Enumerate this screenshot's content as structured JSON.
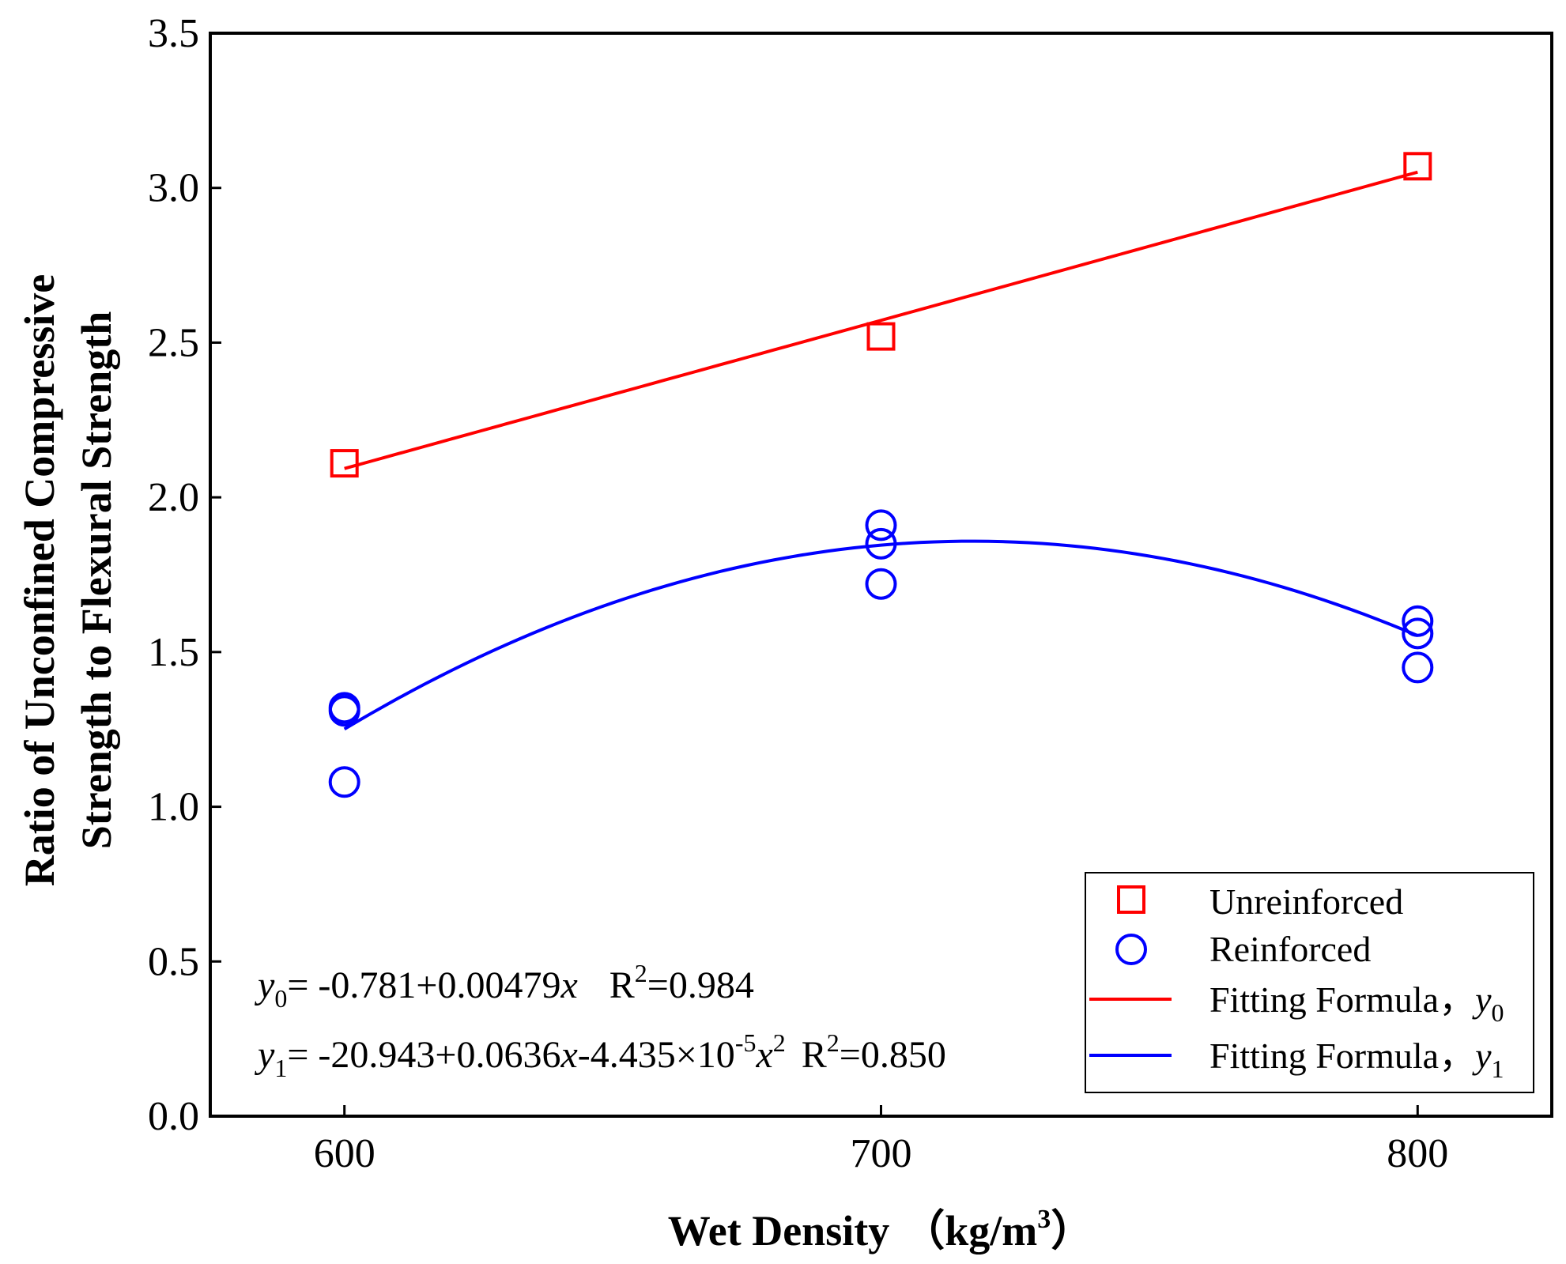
{
  "chart_data": {
    "type": "scatter",
    "xlabel": "Wet Density",
    "xunit": "（kg/m",
    "xunit_sup": "3",
    "xunit_close": "）",
    "ylabel_line1": "Ratio of Unconfined Compressive",
    "ylabel_line2": "Strength to Flexural Strength",
    "xlim": [
      575,
      825
    ],
    "ylim": [
      0.0,
      3.5
    ],
    "xticks": [
      600,
      700,
      800
    ],
    "xtick_labels": [
      "600",
      "700",
      "800"
    ],
    "yticks": [
      0.0,
      0.5,
      1.0,
      1.5,
      2.0,
      2.5,
      3.0,
      3.5
    ],
    "ytick_labels": [
      "0.0",
      "0.5",
      "1.0",
      "1.5",
      "2.0",
      "2.5",
      "3.0",
      "3.5"
    ],
    "grid": false,
    "legend_position": "bottom-right",
    "series": [
      {
        "name": "Unreinforced",
        "marker": "square",
        "color": "#ff0000",
        "x": [
          600,
          700,
          800
        ],
        "y": [
          2.11,
          2.52,
          3.07
        ]
      },
      {
        "name": "Reinforced",
        "marker": "circle",
        "color": "#0000ff",
        "x": [
          600,
          600,
          600,
          700,
          700,
          700,
          800,
          800,
          800
        ],
        "y": [
          1.32,
          1.31,
          1.08,
          1.91,
          1.85,
          1.72,
          1.6,
          1.56,
          1.45
        ]
      }
    ],
    "fits": [
      {
        "name": "Fitting Formula，",
        "var": "y",
        "sub": "0",
        "color": "#ff0000",
        "coefficients": [
          -0.781,
          0.00479
        ],
        "x_range": [
          600,
          800
        ],
        "label": "y0 = -0.781+0.00479x  R2=0.984"
      },
      {
        "name": "Fitting Formula，",
        "var": "y",
        "sub": "1",
        "color": "#0000ff",
        "coefficients": [
          -20.943,
          0.0636,
          -4.435e-05
        ],
        "x_range": [
          600,
          800
        ],
        "label": "y1 = -20.943+0.0636x-4.435×10-5x2  R2=0.850"
      }
    ],
    "annotations": {
      "f0": {
        "var": "y",
        "sub": "0",
        "body": "= -0.781+0.00479",
        "x": "x",
        "r": "R",
        "r_sup": "2",
        "r_val": "=0.984"
      },
      "f1": {
        "var": "y",
        "sub": "1",
        "body": "= -20.943+0.0636",
        "x": "x",
        "mid": "-4.435×10",
        "exp": "-5",
        "x2": "x",
        "x2_sup": "2",
        "r": "R",
        "r_sup": "2",
        "r_val": "=0.850"
      }
    }
  }
}
